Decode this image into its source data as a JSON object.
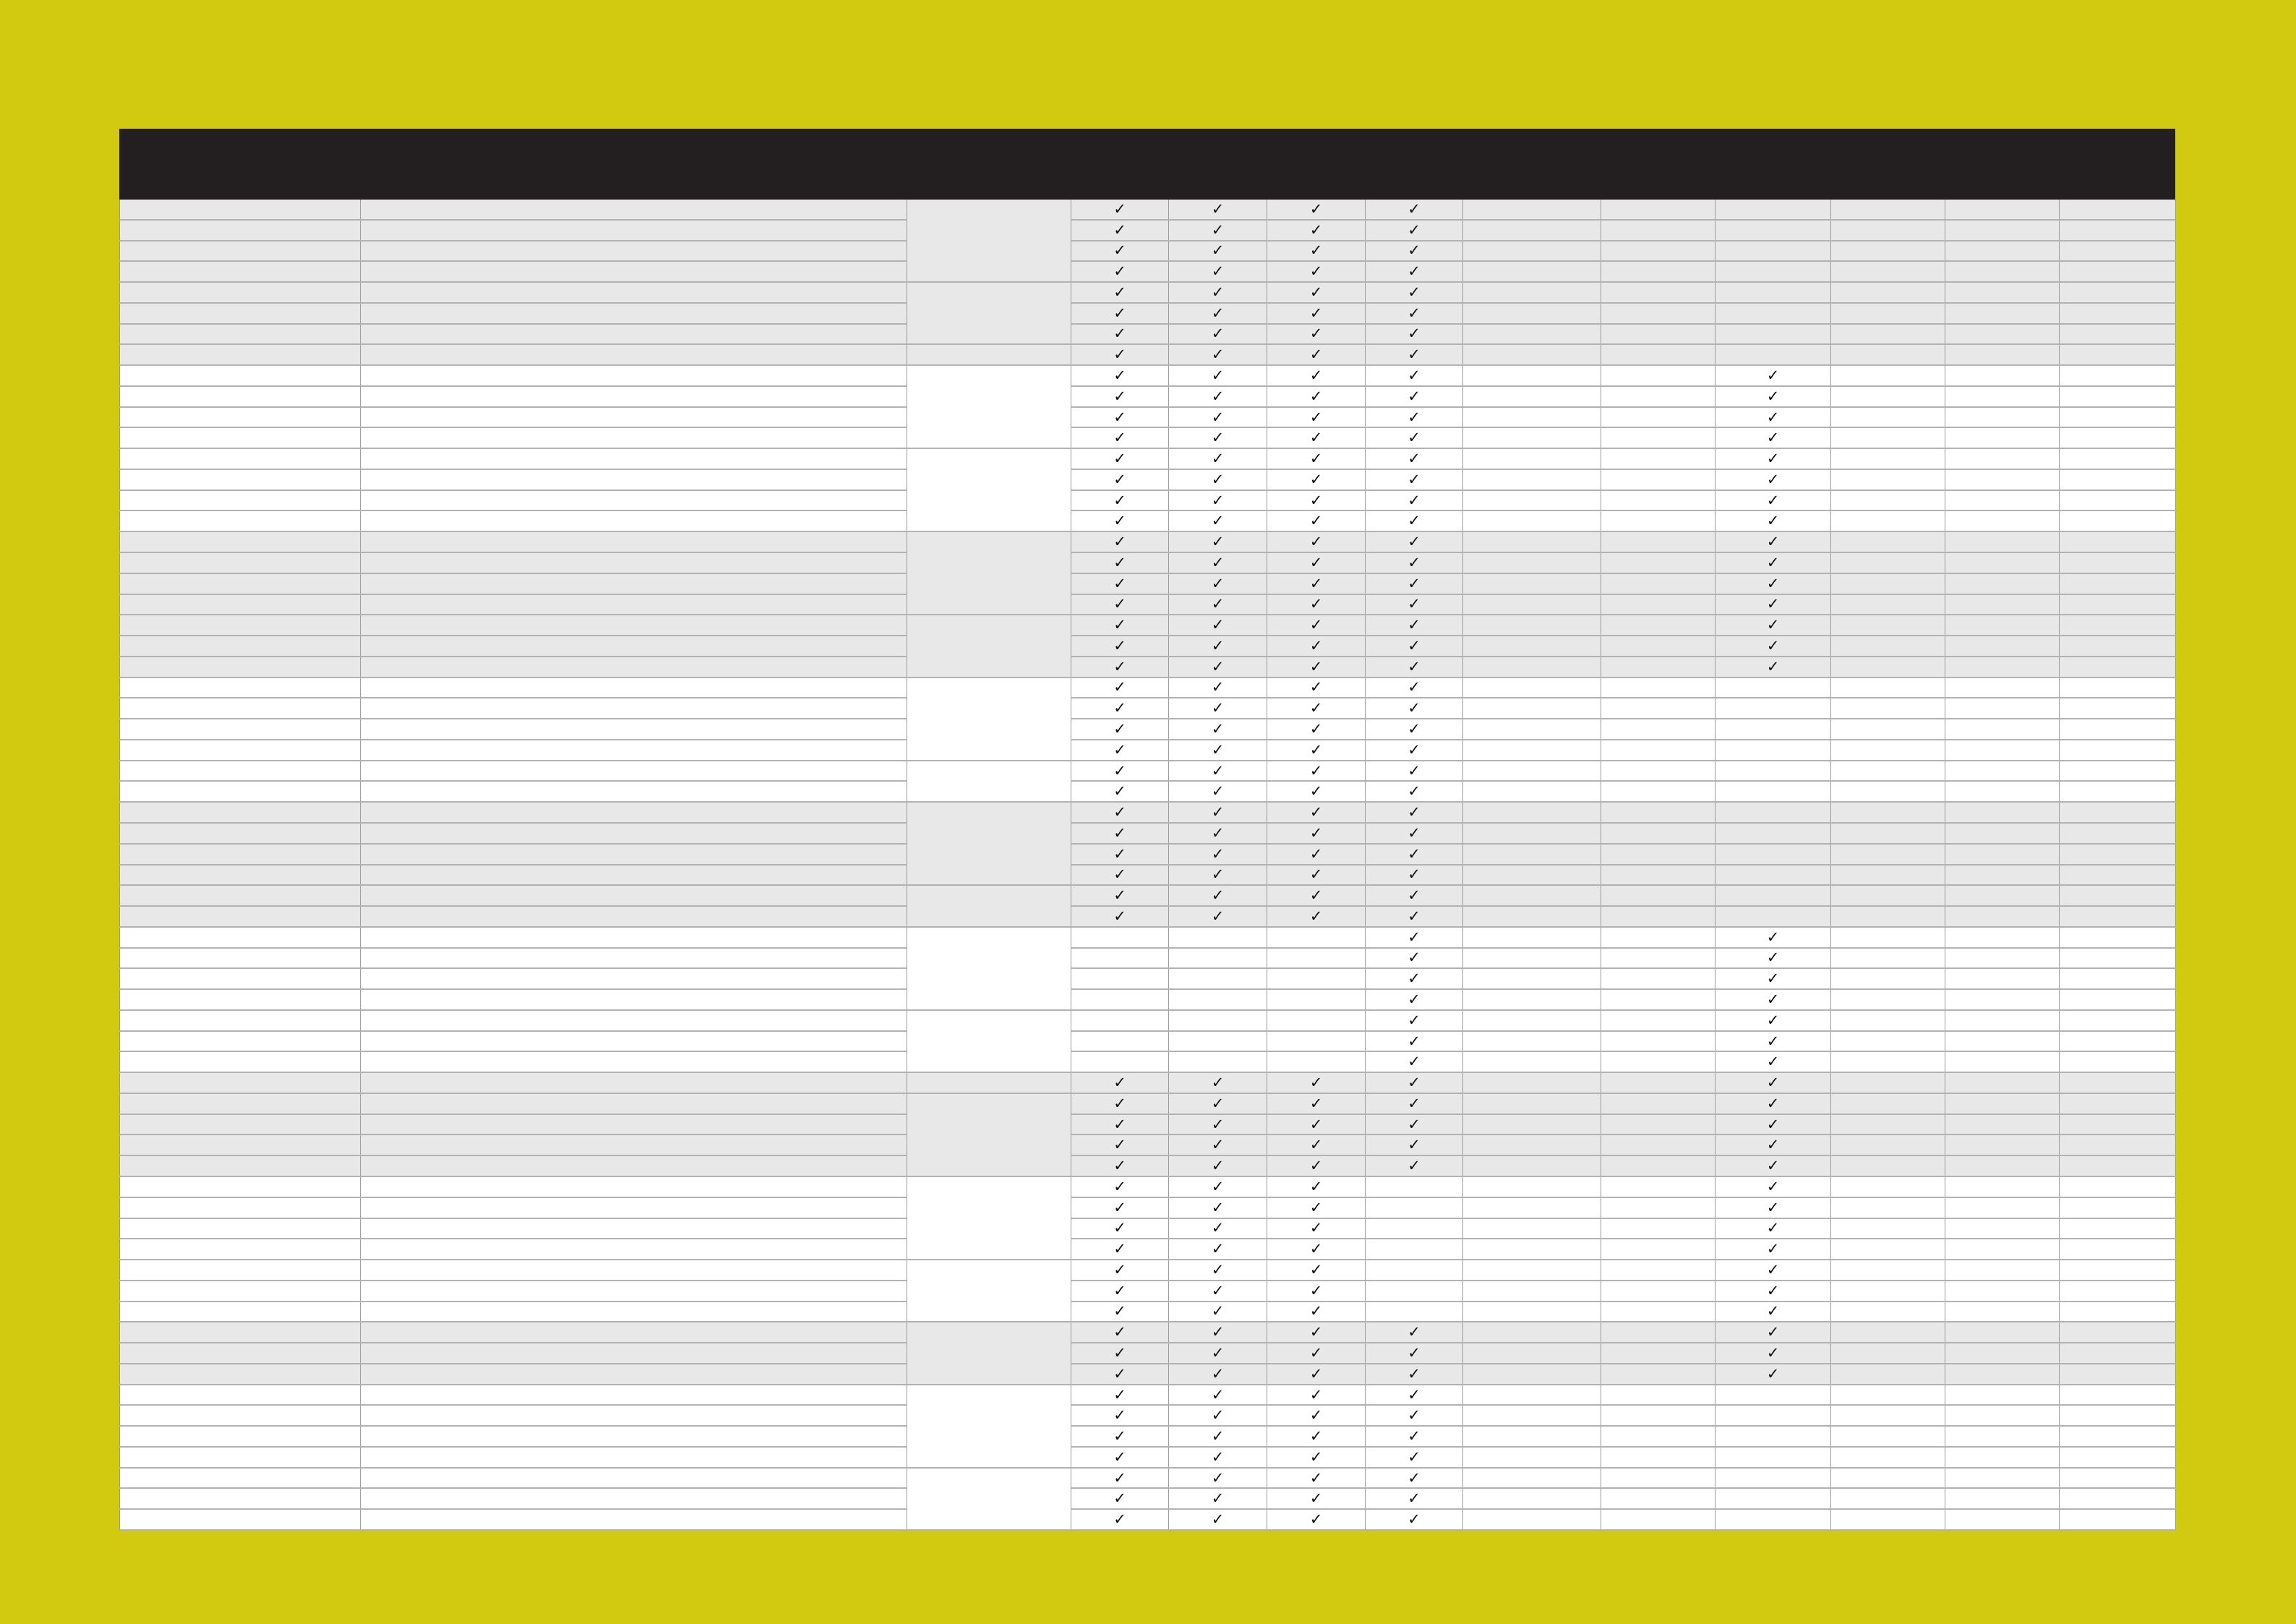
{
  "colors": {
    "background": "#d1ca10",
    "header": "#231f20",
    "shaded_row": "#e8e8e8",
    "plain_row": "#ffffff"
  },
  "check_symbol": "✓",
  "groups": [
    {
      "rows": 4,
      "shaded": true,
      "checks": [
        1,
        1,
        1,
        1,
        0,
        0,
        0,
        0,
        0,
        0
      ]
    },
    {
      "rows": 3,
      "shaded": true,
      "checks": [
        1,
        1,
        1,
        1,
        0,
        0,
        0,
        0,
        0,
        0
      ]
    },
    {
      "rows": 1,
      "shaded": true,
      "checks": [
        1,
        1,
        1,
        1,
        0,
        0,
        0,
        0,
        0,
        0
      ]
    },
    {
      "rows": 4,
      "shaded": false,
      "checks": [
        1,
        1,
        1,
        1,
        0,
        0,
        1,
        0,
        0,
        0
      ]
    },
    {
      "rows": 4,
      "shaded": false,
      "checks": [
        1,
        1,
        1,
        1,
        0,
        0,
        1,
        0,
        0,
        0
      ]
    },
    {
      "rows": 4,
      "shaded": true,
      "checks": [
        1,
        1,
        1,
        1,
        0,
        0,
        1,
        0,
        0,
        0
      ]
    },
    {
      "rows": 3,
      "shaded": true,
      "checks": [
        1,
        1,
        1,
        1,
        0,
        0,
        1,
        0,
        0,
        0
      ]
    },
    {
      "rows": 4,
      "shaded": false,
      "checks": [
        1,
        1,
        1,
        1,
        0,
        0,
        0,
        0,
        0,
        0
      ]
    },
    {
      "rows": 2,
      "shaded": false,
      "checks": [
        1,
        1,
        1,
        1,
        0,
        0,
        0,
        0,
        0,
        0
      ]
    },
    {
      "rows": 4,
      "shaded": true,
      "checks": [
        1,
        1,
        1,
        1,
        0,
        0,
        0,
        0,
        0,
        0
      ]
    },
    {
      "rows": 2,
      "shaded": true,
      "checks": [
        1,
        1,
        1,
        1,
        0,
        0,
        0,
        0,
        0,
        0
      ]
    },
    {
      "rows": 4,
      "shaded": false,
      "checks": [
        0,
        0,
        0,
        1,
        0,
        0,
        1,
        0,
        0,
        0
      ]
    },
    {
      "rows": 3,
      "shaded": false,
      "checks": [
        0,
        0,
        0,
        1,
        0,
        0,
        1,
        0,
        0,
        0
      ]
    },
    {
      "rows": 1,
      "shaded": true,
      "checks": [
        1,
        1,
        1,
        1,
        0,
        0,
        1,
        0,
        0,
        0
      ]
    },
    {
      "rows": 4,
      "shaded": true,
      "checks": [
        1,
        1,
        1,
        1,
        0,
        0,
        1,
        0,
        0,
        0
      ]
    },
    {
      "rows": 4,
      "shaded": false,
      "checks": [
        1,
        1,
        1,
        0,
        0,
        0,
        1,
        0,
        0,
        0
      ]
    },
    {
      "rows": 3,
      "shaded": false,
      "checks": [
        1,
        1,
        1,
        0,
        0,
        0,
        1,
        0,
        0,
        0
      ]
    },
    {
      "rows": 3,
      "shaded": true,
      "checks": [
        1,
        1,
        1,
        1,
        0,
        0,
        1,
        0,
        0,
        0
      ]
    },
    {
      "rows": 4,
      "shaded": false,
      "checks": [
        1,
        1,
        1,
        1,
        0,
        0,
        0,
        0,
        0,
        0
      ]
    },
    {
      "rows": 3,
      "shaded": false,
      "checks": [
        1,
        1,
        1,
        1,
        0,
        0,
        0,
        0,
        0,
        0
      ]
    }
  ]
}
